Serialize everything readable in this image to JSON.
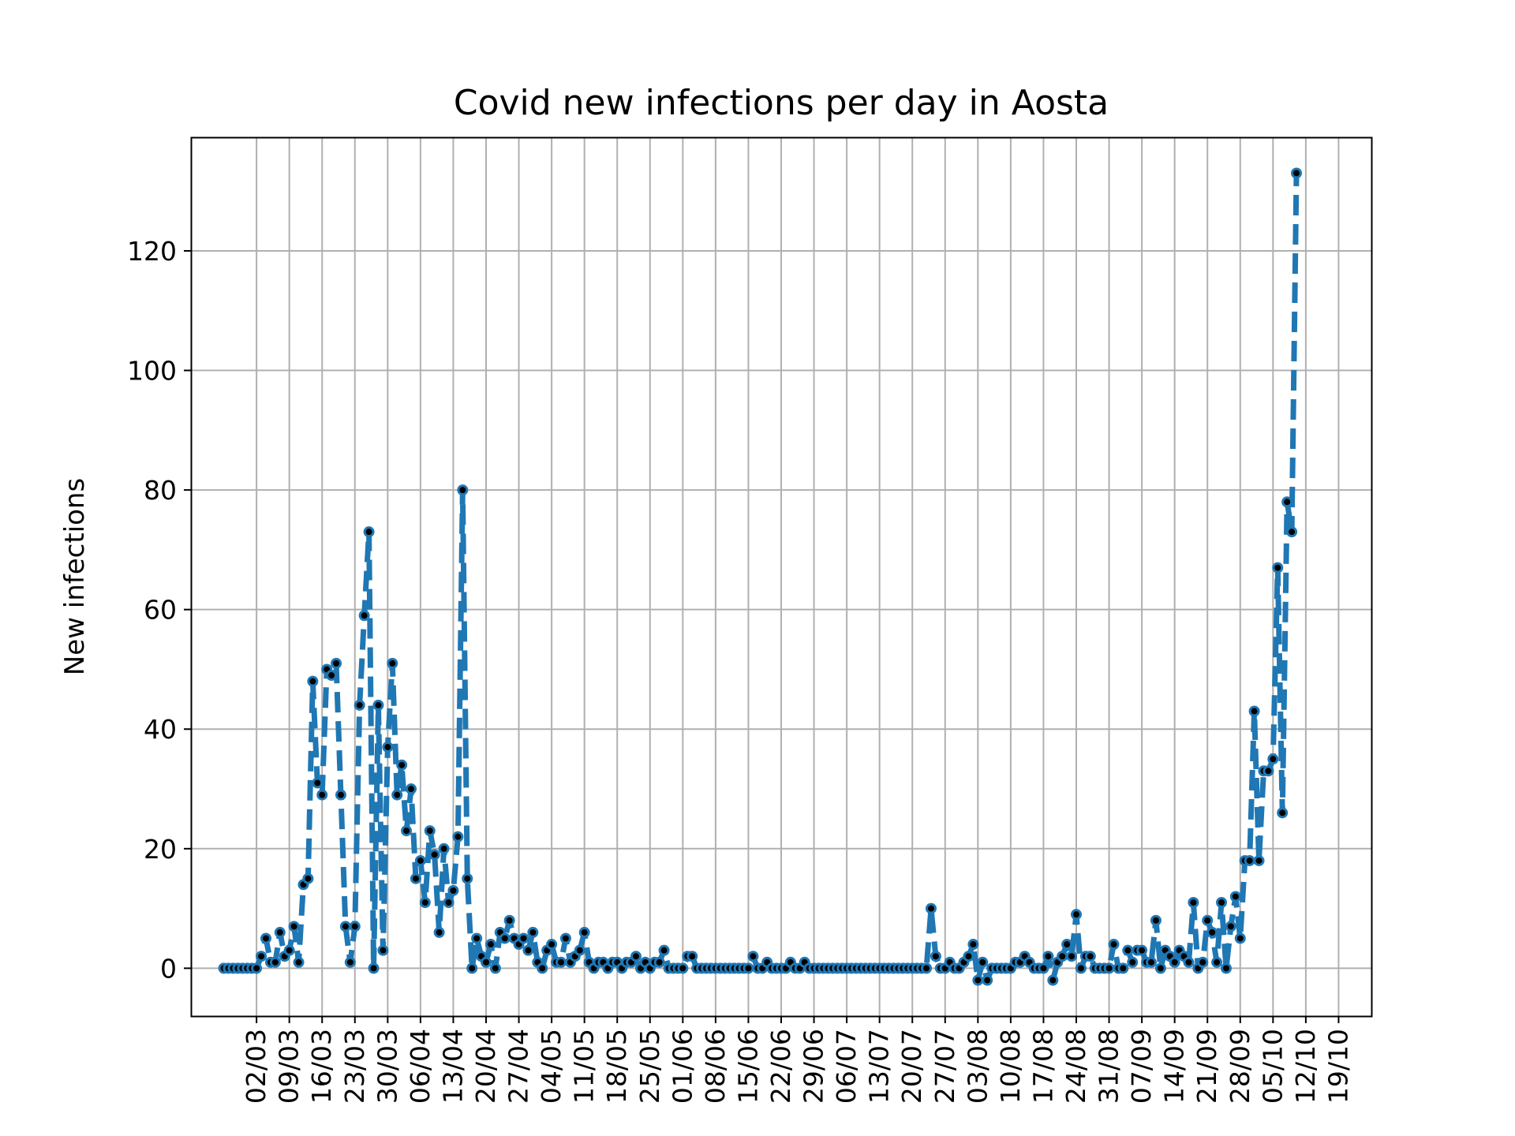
{
  "chart_data": {
    "type": "line",
    "title": "Covid new infections per day in Aosta",
    "xlabel": "",
    "ylabel": "New infections",
    "x_start": "24/02",
    "x_ticks": [
      "02/03",
      "09/03",
      "16/03",
      "23/03",
      "30/03",
      "06/04",
      "13/04",
      "20/04",
      "27/04",
      "04/05",
      "11/05",
      "18/05",
      "25/05",
      "01/06",
      "08/06",
      "15/06",
      "22/06",
      "29/06",
      "06/07",
      "13/07",
      "20/07",
      "27/07",
      "03/08",
      "10/08",
      "17/08",
      "24/08",
      "31/08",
      "07/09",
      "14/09",
      "21/09",
      "28/09",
      "05/10",
      "12/10",
      "19/10"
    ],
    "y_ticks": [
      0,
      20,
      40,
      60,
      80,
      100,
      120
    ],
    "xlim": [
      "17/02",
      "26/10"
    ],
    "ylim": [
      -8,
      139
    ],
    "grid": true,
    "line_style": "dashed",
    "marker": "dot",
    "color": "#1f77b4",
    "marker_color": "#000000",
    "values": [
      0,
      0,
      0,
      0,
      0,
      0,
      0,
      0,
      2,
      5,
      1,
      1,
      6,
      2,
      3,
      7,
      1,
      14,
      15,
      48,
      31,
      29,
      50,
      49,
      51,
      29,
      7,
      1,
      7,
      44,
      59,
      73,
      0,
      44,
      3,
      37,
      51,
      29,
      34,
      23,
      30,
      15,
      18,
      11,
      23,
      19,
      6,
      20,
      11,
      13,
      22,
      80,
      15,
      0,
      5,
      2,
      1,
      4,
      0,
      6,
      5,
      8,
      5,
      4,
      5,
      3,
      6,
      1,
      0,
      3,
      4,
      1,
      1,
      5,
      1,
      2,
      3,
      6,
      1,
      0,
      1,
      1,
      0,
      1,
      1,
      0,
      1,
      1,
      2,
      0,
      1,
      0,
      1,
      1,
      3,
      0,
      0,
      0,
      0,
      2,
      2,
      0,
      0,
      0,
      0,
      0,
      0,
      0,
      0,
      0,
      0,
      0,
      0,
      2,
      0,
      0,
      1,
      0,
      0,
      0,
      0,
      1,
      0,
      0,
      1,
      0,
      0,
      0,
      0,
      0,
      0,
      0,
      0,
      0,
      0,
      0,
      0,
      0,
      0,
      0,
      0,
      0,
      0,
      0,
      0,
      0,
      0,
      0,
      0,
      0,
      0,
      10,
      2,
      0,
      0,
      1,
      0,
      0,
      1,
      2,
      4,
      -2,
      1,
      -2,
      0,
      0,
      0,
      0,
      0,
      1,
      1,
      2,
      1,
      0,
      0,
      0,
      2,
      -2,
      1,
      2,
      4,
      2,
      9,
      0,
      2,
      2,
      0,
      0,
      0,
      0,
      4,
      0,
      0,
      3,
      1,
      3,
      3,
      1,
      1,
      8,
      0,
      3,
      2,
      1,
      3,
      2,
      1,
      11,
      0,
      1,
      8,
      6,
      1,
      11,
      0,
      7,
      12,
      5,
      18,
      18,
      43,
      18,
      33,
      33,
      35,
      67,
      26,
      78,
      73,
      133
    ]
  }
}
